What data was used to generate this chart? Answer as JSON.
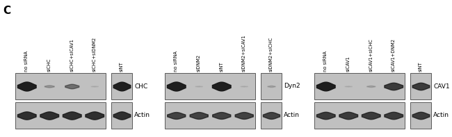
{
  "panel_label": "C",
  "bg": "#ffffff",
  "fig_w": 6.5,
  "fig_h": 1.97,
  "label_fontsize": 4.8,
  "blot_fontsize": 6.5,
  "panels": [
    {
      "id": "left",
      "labels": [
        "no siRNA",
        "siCHC",
        "siCHC+siCAV1",
        "siCHC+siDNM2",
        "siNT"
      ],
      "blots": [
        {
          "name": "CHC",
          "row": 0,
          "bands": [
            0.9,
            0.22,
            0.45,
            0.08,
            0.88
          ]
        },
        {
          "name": "Actin",
          "row": 1,
          "bands": [
            0.78,
            0.78,
            0.78,
            0.78,
            0.78
          ]
        }
      ]
    },
    {
      "id": "middle",
      "labels": [
        "no siRNA",
        "siDNM2",
        "siNT",
        "siDNM2+siCAV1",
        "siDNM2+siCHC"
      ],
      "blots": [
        {
          "name": "Dyn2",
          "row": 0,
          "bands": [
            0.9,
            0.08,
            0.88,
            0.08,
            0.15
          ]
        },
        {
          "name": "Actin",
          "row": 1,
          "bands": [
            0.68,
            0.68,
            0.68,
            0.68,
            0.68
          ]
        }
      ]
    },
    {
      "id": "right",
      "labels": [
        "no siRNA",
        "siCAV1",
        "siCAV1+siCHC",
        "siCAV1+DNM2",
        "siNT"
      ],
      "blots": [
        {
          "name": "CAV1",
          "row": 0,
          "bands": [
            0.88,
            0.08,
            0.15,
            0.72,
            0.72
          ]
        },
        {
          "name": "Actin",
          "row": 1,
          "bands": [
            0.72,
            0.72,
            0.72,
            0.72,
            0.72
          ]
        }
      ]
    }
  ]
}
